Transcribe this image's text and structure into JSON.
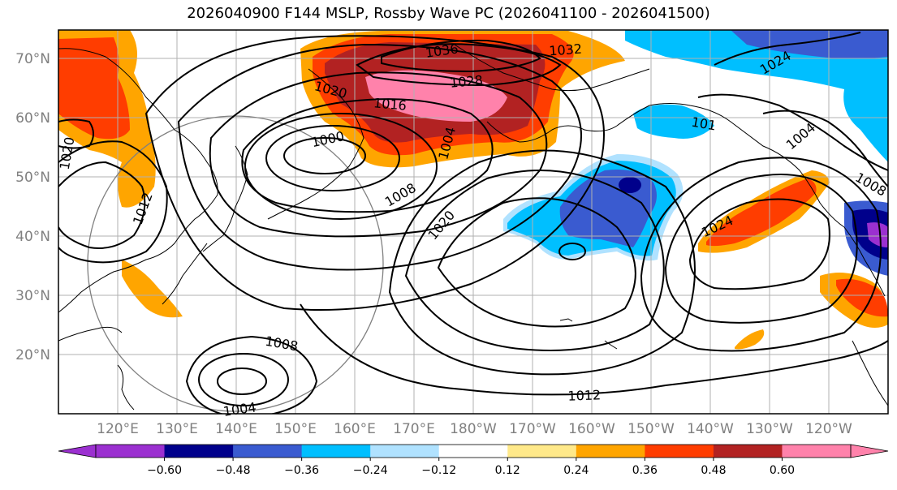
{
  "title": "2026040900 F144 MSLP, Rossby Wave PC (2026041100 - 2026041500)",
  "lat_labels": [
    "70°N",
    "60°N",
    "50°N",
    "40°N",
    "30°N",
    "20°N"
  ],
  "lon_labels": [
    "120°E",
    "130°E",
    "140°E",
    "150°E",
    "160°E",
    "170°E",
    "180°W",
    "170°W",
    "160°W",
    "150°W",
    "140°W",
    "130°W",
    "120°W"
  ],
  "contour_labels": [
    {
      "text": "1036",
      "rotate": -8
    },
    {
      "text": "1032",
      "rotate": -4
    },
    {
      "text": "1028",
      "rotate": -5
    },
    {
      "text": "1024",
      "rotate": -30
    },
    {
      "text": "1020",
      "rotate": 15
    },
    {
      "text": "1016",
      "rotate": 5
    },
    {
      "text": "1000",
      "rotate": -12
    },
    {
      "text": "1004",
      "rotate": -75
    },
    {
      "text": "1008",
      "rotate": -30
    },
    {
      "text": "1020",
      "rotate": -50
    },
    {
      "text": "1012",
      "rotate": -70
    },
    {
      "text": "1020",
      "rotate": -80
    },
    {
      "text": "101",
      "rotate": 10
    },
    {
      "text": "1004",
      "rotate": -40
    },
    {
      "text": "1008",
      "rotate": 30
    },
    {
      "text": "1024",
      "rotate": -25
    },
    {
      "text": "1008",
      "rotate": 10
    },
    {
      "text": "1004",
      "rotate": -8
    },
    {
      "text": "1012",
      "rotate": -2
    }
  ],
  "colorbar": {
    "colors": [
      "#9b30d0",
      "#00008b",
      "#3a5bd0",
      "#00bfff",
      "#b0e2ff",
      "#ffffff",
      "#ffe98a",
      "#ffa500",
      "#ff3d00",
      "#b22222",
      "#ff82ab"
    ],
    "ticks": [
      "−0.60",
      "−0.48",
      "−0.36",
      "−0.24",
      "−0.12",
      "0.12",
      "0.24",
      "0.36",
      "0.48",
      "0.60"
    ]
  }
}
